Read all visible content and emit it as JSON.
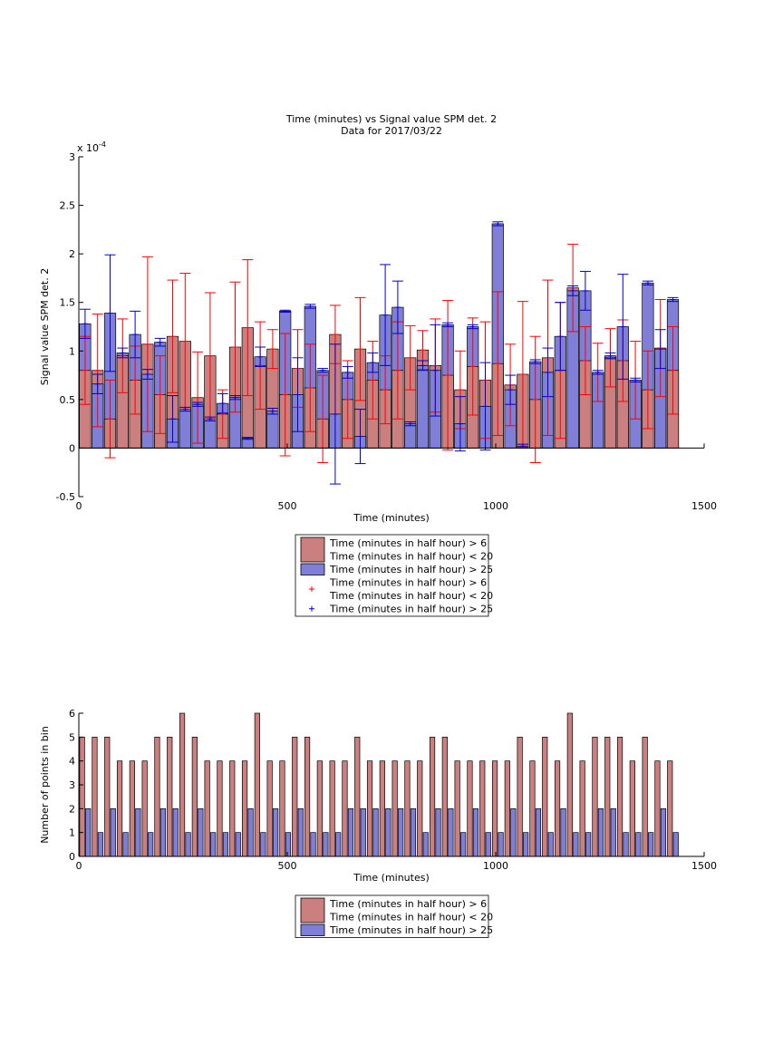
{
  "chart_data": [
    {
      "type": "bar",
      "title": [
        "Time (minutes) vs Signal value SPM det. 2",
        "Data for 2017/03/22"
      ],
      "xlabel": "Time (minutes)",
      "ylabel": "Signal value SPM det. 2",
      "y_scale_label": {
        "base": "x 10",
        "exponent": "-4"
      },
      "xlim": [
        0,
        1500
      ],
      "xticks": [
        0,
        500,
        1000,
        1500
      ],
      "ylim": [
        -0.5,
        3
      ],
      "yticks": [
        -0.5,
        0,
        0.5,
        1,
        1.5,
        2,
        2.5,
        3
      ],
      "x": [
        15,
        45,
        75,
        105,
        135,
        165,
        195,
        225,
        255,
        285,
        315,
        345,
        375,
        405,
        435,
        465,
        495,
        525,
        555,
        585,
        615,
        645,
        675,
        705,
        735,
        765,
        795,
        825,
        855,
        885,
        915,
        945,
        975,
        1005,
        1035,
        1065,
        1095,
        1125,
        1155,
        1185,
        1215,
        1245,
        1275,
        1305,
        1335,
        1365,
        1395,
        1425
      ],
      "series": [
        {
          "name": [
            "Time (minutes in half hour) > 6",
            "Time (minutes in half hour) < 20"
          ],
          "color": "#cc7f7f",
          "error_color": "#ff0000",
          "values": [
            0.8,
            0.8,
            0.3,
            0.95,
            0.7,
            1.07,
            0.55,
            1.15,
            1.1,
            0.52,
            0.95,
            0.35,
            1.04,
            1.24,
            0.85,
            1.02,
            0.55,
            0.82,
            0.62,
            0.3,
            1.17,
            0.5,
            1.02,
            0.7,
            0.6,
            0.8,
            0.93,
            1.01,
            0.85,
            0.75,
            0.6,
            0.84,
            0.7,
            0.87,
            0.65,
            0.76,
            0.5,
            0.93,
            0.8,
            1.65,
            0.9,
            0.78,
            0.93,
            0.9,
            0.7,
            0.6,
            1.03,
            0.8
          ],
          "errors": [
            0.35,
            0.58,
            0.4,
            0.38,
            0.35,
            0.9,
            0.4,
            0.58,
            0.7,
            0.47,
            0.65,
            0.25,
            0.67,
            0.7,
            0.45,
            0.2,
            0.63,
            0.4,
            0.45,
            0.45,
            0.3,
            0.4,
            0.53,
            0.4,
            0.35,
            0.5,
            0.33,
            0.2,
            0.48,
            0.77,
            0.4,
            0.5,
            0.6,
            0.74,
            0.42,
            0.75,
            0.65,
            0.8,
            0.7,
            0.45,
            0.35,
            0.3,
            0.3,
            0.42,
            0.4,
            0.4,
            0.5,
            0.45
          ]
        },
        {
          "name": [
            "Time (minutes in half hour) > 25"
          ],
          "color": "#7f7fd7",
          "error_color": "#0000cc",
          "values": [
            1.28,
            0.66,
            1.39,
            0.98,
            1.17,
            0.76,
            1.09,
            0.3,
            0.4,
            0.45,
            0.3,
            0.46,
            0.52,
            0.1,
            0.94,
            0.38,
            1.41,
            0.55,
            1.46,
            0.8,
            0.35,
            0.78,
            0.12,
            0.88,
            1.37,
            1.45,
            0.25,
            0.85,
            0.8,
            1.27,
            0.25,
            1.25,
            0.43,
            2.31,
            0.6,
            0.02,
            0.89,
            0.78,
            1.15,
            1.62,
            1.62,
            0.78,
            0.95,
            1.25,
            0.7,
            1.7,
            1.02,
            1.53
          ],
          "errors": [
            0.15,
            0.1,
            0.6,
            0.05,
            0.24,
            0.05,
            0.04,
            0.24,
            0.02,
            0.02,
            0.02,
            0.1,
            0.02,
            0.01,
            0.1,
            0.03,
            0.01,
            0.38,
            0.02,
            0.02,
            0.72,
            0.06,
            0.28,
            0.1,
            0.52,
            0.27,
            0.02,
            0.05,
            0.47,
            0.02,
            0.28,
            0.02,
            0.45,
            0.02,
            0.15,
            0.02,
            0.02,
            0.25,
            0.35,
            0.05,
            0.2,
            0.02,
            0.03,
            0.54,
            0.02,
            0.02,
            0.2,
            0.02
          ]
        }
      ],
      "legend": "below",
      "grid": false
    },
    {
      "type": "bar",
      "xlabel": "Time (minutes)",
      "ylabel": "Number of points in bin",
      "xlim": [
        0,
        1500
      ],
      "xticks": [
        0,
        500,
        1000,
        1500
      ],
      "ylim": [
        0,
        6
      ],
      "yticks": [
        0,
        1,
        2,
        3,
        4,
        5,
        6
      ],
      "x": [
        15,
        45,
        75,
        105,
        135,
        165,
        195,
        225,
        255,
        285,
        315,
        345,
        375,
        405,
        435,
        465,
        495,
        525,
        555,
        585,
        615,
        645,
        675,
        705,
        735,
        765,
        795,
        825,
        855,
        885,
        915,
        945,
        975,
        1005,
        1035,
        1065,
        1095,
        1125,
        1155,
        1185,
        1215,
        1245,
        1275,
        1305,
        1335,
        1365,
        1395,
        1425
      ],
      "series": [
        {
          "name": [
            "Time (minutes in half hour) > 6",
            "Time (minutes in half hour) < 20"
          ],
          "color": "#cc7f7f",
          "values": [
            5,
            5,
            5,
            4,
            4,
            4,
            5,
            5,
            6,
            5,
            4,
            4,
            4,
            4,
            6,
            4,
            4,
            5,
            5,
            4,
            4,
            4,
            5,
            4,
            4,
            4,
            4,
            4,
            5,
            5,
            4,
            4,
            4,
            4,
            4,
            5,
            4,
            5,
            4,
            6,
            4,
            5,
            5,
            5,
            4,
            5,
            4,
            4
          ]
        },
        {
          "name": [
            "Time (minutes in half hour) > 25"
          ],
          "color": "#7f7fd7",
          "values": [
            2,
            1,
            2,
            1,
            2,
            1,
            2,
            2,
            1,
            2,
            1,
            1,
            1,
            2,
            1,
            2,
            1,
            2,
            1,
            1,
            1,
            2,
            2,
            2,
            2,
            2,
            2,
            1,
            2,
            2,
            1,
            2,
            1,
            1,
            2,
            1,
            2,
            1,
            2,
            1,
            1,
            2,
            2,
            1,
            1,
            1,
            2,
            1
          ]
        }
      ],
      "legend": "below",
      "grid": false
    }
  ]
}
